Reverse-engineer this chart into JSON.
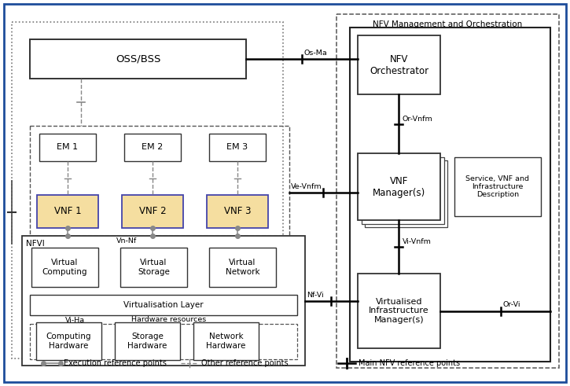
{
  "title": "NFV Management and Orchestration",
  "bg_color": "#ffffff",
  "border_color": "#1e4d9b",
  "legend": {
    "exec_label": "Execution reference points",
    "other_label": "Other reference points",
    "main_label": "Main NFV reference points"
  }
}
